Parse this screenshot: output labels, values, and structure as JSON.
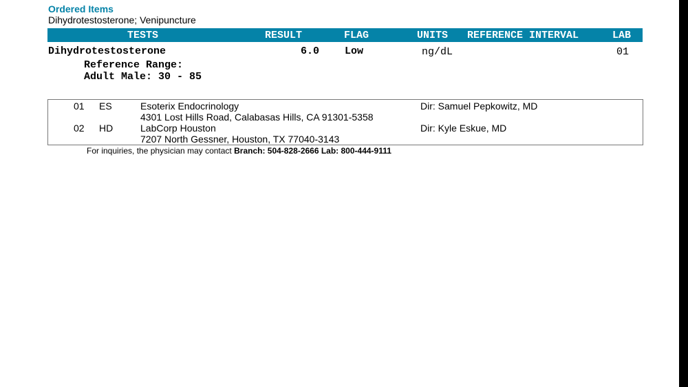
{
  "ordered_items": {
    "title": "Ordered Items",
    "items": "Dihydrotestosterone; Venipuncture"
  },
  "table": {
    "headers": {
      "tests": "TESTS",
      "result": "RESULT",
      "flag": "FLAG",
      "units": "UNITS",
      "reference_interval": "REFERENCE INTERVAL",
      "lab": "LAB"
    },
    "rows": [
      {
        "test": "Dihydrotestosterone",
        "result": "6.0",
        "flag": "Low",
        "units": "ng/dL",
        "lab": "01",
        "ref_label": "Reference Range:",
        "ref_value": "Adult Male: 30 - 85"
      }
    ]
  },
  "labs": [
    {
      "code": "01",
      "abbr": "ES",
      "name": "Esoterix Endocrinology",
      "address": "4301 Lost Hills Road, Calabasas Hills, CA 91301-5358",
      "director": "Dir: Samuel Pepkowitz, MD"
    },
    {
      "code": "02",
      "abbr": "HD",
      "name": "LabCorp Houston",
      "address": "7207 North Gessner, Houston, TX 77040-3143",
      "director": "Dir: Kyle Eskue, MD"
    }
  ],
  "footer": {
    "text": "For inquiries, the physician may contact ",
    "contacts": "Branch: 504-828-2666 Lab: 800-444-9111"
  },
  "colors": {
    "accent": "#0583a8"
  }
}
